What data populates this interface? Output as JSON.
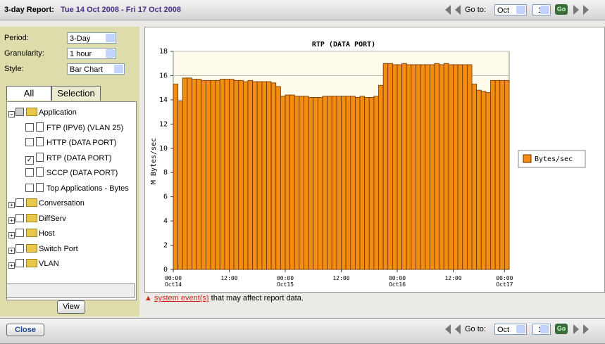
{
  "header": {
    "label": "3-day Report:",
    "range": "Tue 14 Oct 2008 - Fri 17 Oct 2008"
  },
  "nav": {
    "goto_label": "Go to:",
    "month": "Oct",
    "day": "14",
    "go": "Go"
  },
  "sidebar": {
    "fields": [
      {
        "label": "Period:",
        "value": "3-Day"
      },
      {
        "label": "Granularity:",
        "value": "1 hour"
      },
      {
        "label": "Style:",
        "value": "Bar Chart"
      }
    ],
    "tabs": [
      "All",
      "Selection"
    ],
    "tree": [
      {
        "label": "Application",
        "level": 0,
        "checked": "partial"
      },
      {
        "label": "FTP (IPV6) (VLAN 25)",
        "level": 1,
        "checked": "no"
      },
      {
        "label": "HTTP  (DATA PORT)",
        "level": 1,
        "checked": "no"
      },
      {
        "label": "RTP  (DATA PORT)",
        "level": 1,
        "checked": "yes"
      },
      {
        "label": "SCCP  (DATA PORT)",
        "level": 1,
        "checked": "no"
      },
      {
        "label": "Top Applications - Bytes",
        "level": 1,
        "checked": "no"
      },
      {
        "label": "Conversation",
        "level": 0,
        "checked": "no"
      },
      {
        "label": "DiffServ",
        "level": 0,
        "checked": "no"
      },
      {
        "label": "Host",
        "level": 0,
        "checked": "no"
      },
      {
        "label": "Switch Port",
        "level": 0,
        "checked": "no"
      },
      {
        "label": "VLAN",
        "level": 0,
        "checked": "no"
      }
    ],
    "view": "View"
  },
  "notice": {
    "link": "system event(s)",
    "text": " that may affect report data."
  },
  "footer": {
    "close": "Close"
  },
  "chart_data": {
    "type": "bar",
    "title": "RTP   (DATA PORT)",
    "ylabel": "M Bytes/sec",
    "series": [
      {
        "name": "Bytes/sec",
        "color": "#f28c12",
        "values": [
          15.3,
          13.9,
          15.8,
          15.8,
          15.7,
          15.7,
          15.6,
          15.6,
          15.6,
          15.6,
          15.7,
          15.7,
          15.7,
          15.6,
          15.6,
          15.5,
          15.6,
          15.5,
          15.5,
          15.5,
          15.5,
          15.4,
          15.1,
          14.3,
          14.4,
          14.4,
          14.3,
          14.3,
          14.3,
          14.2,
          14.2,
          14.2,
          14.3,
          14.3,
          14.3,
          14.3,
          14.3,
          14.3,
          14.3,
          14.2,
          14.3,
          14.2,
          14.2,
          14.3,
          15.2,
          17.0,
          17.0,
          16.9,
          16.9,
          17.0,
          16.9,
          16.9,
          16.9,
          16.9,
          16.9,
          16.9,
          17.0,
          16.9,
          17.0,
          16.9,
          16.9,
          16.9,
          16.9,
          16.9,
          15.3,
          14.8,
          14.7,
          14.6,
          15.6,
          15.6,
          15.6,
          15.6
        ]
      }
    ],
    "x": [
      0,
      1,
      2,
      3,
      4,
      5,
      6,
      7,
      8,
      9,
      10,
      11,
      12,
      13,
      14,
      15,
      16,
      17,
      18,
      19,
      20,
      21,
      22,
      23,
      24,
      25,
      26,
      27,
      28,
      29,
      30,
      31,
      32,
      33,
      34,
      35,
      36,
      37,
      38,
      39,
      40,
      41,
      42,
      43,
      44,
      45,
      46,
      47,
      48,
      49,
      50,
      51,
      52,
      53,
      54,
      55,
      56,
      57,
      58,
      59,
      60,
      61,
      62,
      63,
      64,
      65,
      66,
      67,
      68,
      69,
      70,
      71
    ],
    "xlim": [
      0,
      72
    ],
    "xticks": [
      {
        "value": 0,
        "label": "00:00\nOct14"
      },
      {
        "value": 12,
        "label": "12:00"
      },
      {
        "value": 24,
        "label": "00:00\nOct15"
      },
      {
        "value": 36,
        "label": "12:00"
      },
      {
        "value": 48,
        "label": "00:00\nOct16"
      },
      {
        "value": 60,
        "label": "12:00"
      },
      {
        "value": 71,
        "label": "00:00\nOct17"
      }
    ],
    "ylim": [
      0,
      18
    ],
    "yticks": [
      0,
      2,
      4,
      6,
      8,
      10,
      12,
      14,
      16,
      18
    ],
    "grid": true,
    "legend": "right"
  }
}
